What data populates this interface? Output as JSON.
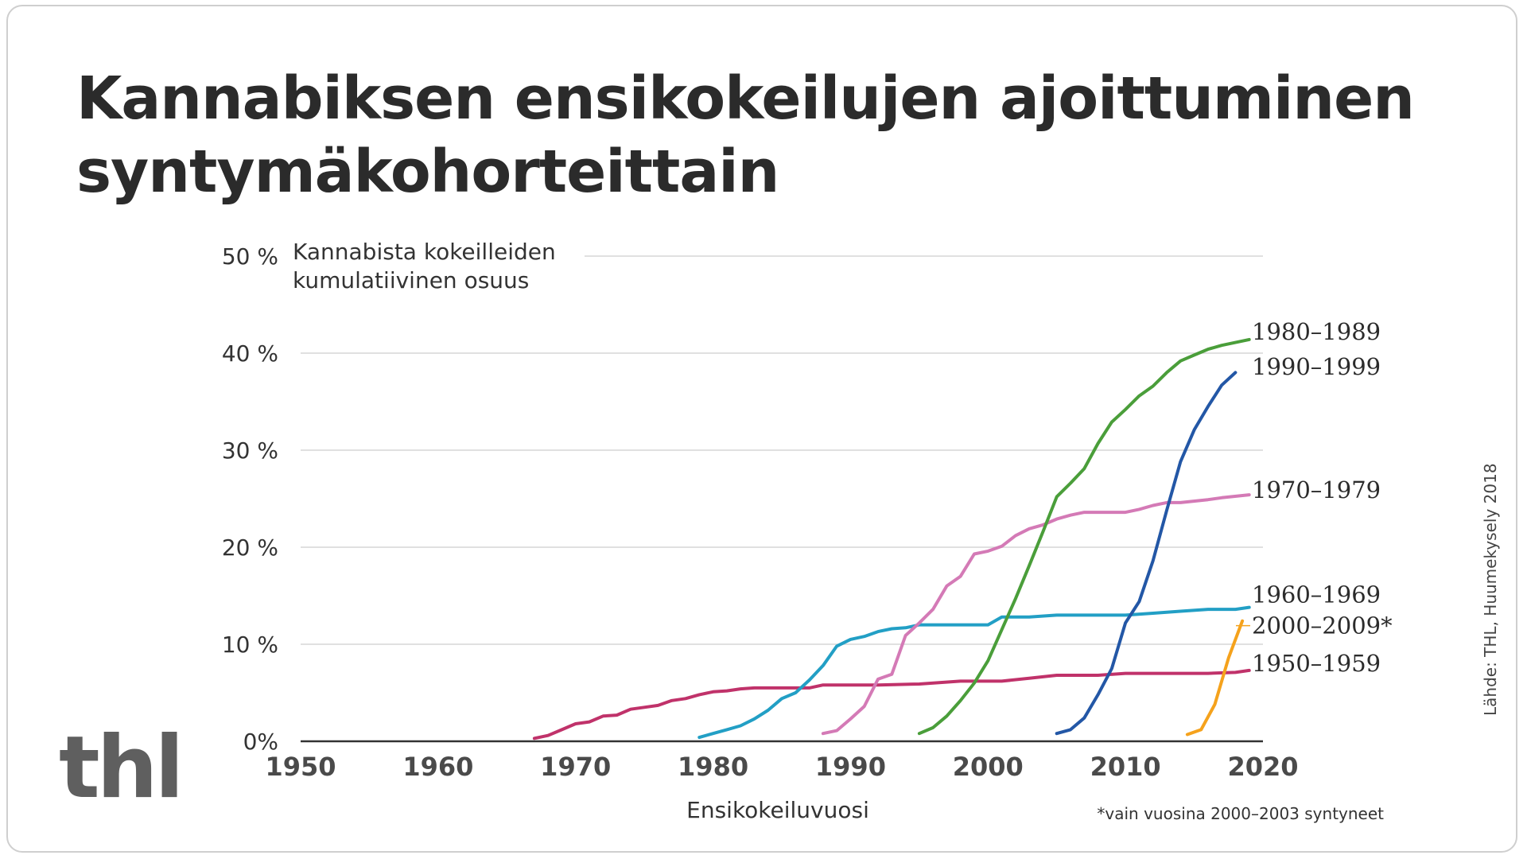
{
  "title_lines": [
    "Kannabiksen ensikokeilujen ajoittuminen",
    "syntymäkohorteittain"
  ],
  "logo_text": "thl",
  "source": "Lähde: THL, Huumekysely 2018",
  "footnote": "*vain vuosina 2000–2003 syntyneet",
  "chart_data": {
    "type": "line",
    "title": "Kannabiksen ensikokeilujen ajoittuminen syntymäkohorteittain",
    "ylabel_lines": [
      "Kannabista kokeilleiden",
      "kumulatiivinen osuus"
    ],
    "xlabel": "Ensikokeiluvuosi",
    "xlim": [
      1950,
      2020
    ],
    "ylim": [
      0,
      50
    ],
    "x_ticks": [
      "1950",
      "1960",
      "1970",
      "1980",
      "1990",
      "2000",
      "2010",
      "2020"
    ],
    "y_ticks": [
      {
        "value": 0,
        "label": "0%"
      },
      {
        "value": 10,
        "label": "10 %"
      },
      {
        "value": 20,
        "label": "20 %"
      },
      {
        "value": 30,
        "label": "30 %"
      },
      {
        "value": 40,
        "label": "40 %"
      },
      {
        "value": 50,
        "label": "50 %"
      }
    ],
    "grid": true,
    "series": [
      {
        "name": "1950–1959",
        "color": "#c0326a",
        "points": [
          [
            1967,
            0.3
          ],
          [
            1968,
            0.6
          ],
          [
            1969,
            1.2
          ],
          [
            1970,
            1.8
          ],
          [
            1971,
            2.0
          ],
          [
            1972,
            2.6
          ],
          [
            1973,
            2.7
          ],
          [
            1974,
            3.3
          ],
          [
            1975,
            3.5
          ],
          [
            1976,
            3.7
          ],
          [
            1977,
            4.2
          ],
          [
            1978,
            4.4
          ],
          [
            1979,
            4.8
          ],
          [
            1980,
            5.1
          ],
          [
            1981,
            5.2
          ],
          [
            1982,
            5.4
          ],
          [
            1983,
            5.5
          ],
          [
            1984,
            5.5
          ],
          [
            1985,
            5.5
          ],
          [
            1986,
            5.5
          ],
          [
            1987,
            5.5
          ],
          [
            1988,
            5.8
          ],
          [
            1989,
            5.8
          ],
          [
            1990,
            5.8
          ],
          [
            1992,
            5.8
          ],
          [
            1995,
            5.9
          ],
          [
            1998,
            6.2
          ],
          [
            2001,
            6.2
          ],
          [
            2003,
            6.5
          ],
          [
            2005,
            6.8
          ],
          [
            2008,
            6.8
          ],
          [
            2010,
            7.0
          ],
          [
            2013,
            7.0
          ],
          [
            2016,
            7.0
          ],
          [
            2018,
            7.1
          ],
          [
            2019,
            7.3
          ]
        ]
      },
      {
        "name": "1960–1969",
        "color": "#229fc5",
        "points": [
          [
            1979,
            0.4
          ],
          [
            1980,
            0.8
          ],
          [
            1981,
            1.2
          ],
          [
            1982,
            1.6
          ],
          [
            1983,
            2.3
          ],
          [
            1984,
            3.2
          ],
          [
            1985,
            4.4
          ],
          [
            1986,
            5.0
          ],
          [
            1987,
            6.3
          ],
          [
            1988,
            7.8
          ],
          [
            1989,
            9.8
          ],
          [
            1990,
            10.5
          ],
          [
            1991,
            10.8
          ],
          [
            1992,
            11.3
          ],
          [
            1993,
            11.6
          ],
          [
            1994,
            11.7
          ],
          [
            1995,
            12.0
          ],
          [
            1997,
            12.0
          ],
          [
            2000,
            12.0
          ],
          [
            2001,
            12.8
          ],
          [
            2003,
            12.8
          ],
          [
            2005,
            13.0
          ],
          [
            2008,
            13.0
          ],
          [
            2010,
            13.0
          ],
          [
            2012,
            13.2
          ],
          [
            2014,
            13.4
          ],
          [
            2016,
            13.6
          ],
          [
            2018,
            13.6
          ],
          [
            2019,
            13.8
          ]
        ]
      },
      {
        "name": "1970–1979",
        "color": "#d47ab6",
        "points": [
          [
            1988,
            0.8
          ],
          [
            1989,
            1.1
          ],
          [
            1990,
            2.3
          ],
          [
            1991,
            3.6
          ],
          [
            1992,
            6.4
          ],
          [
            1993,
            6.9
          ],
          [
            1994,
            10.9
          ],
          [
            1995,
            12.2
          ],
          [
            1996,
            13.6
          ],
          [
            1997,
            16.0
          ],
          [
            1998,
            17.0
          ],
          [
            1999,
            19.3
          ],
          [
            2000,
            19.6
          ],
          [
            2001,
            20.1
          ],
          [
            2002,
            21.2
          ],
          [
            2003,
            21.9
          ],
          [
            2004,
            22.3
          ],
          [
            2005,
            22.9
          ],
          [
            2006,
            23.3
          ],
          [
            2007,
            23.6
          ],
          [
            2010,
            23.6
          ],
          [
            2011,
            23.9
          ],
          [
            2012,
            24.3
          ],
          [
            2013,
            24.6
          ],
          [
            2014,
            24.6
          ],
          [
            2016,
            24.9
          ],
          [
            2017,
            25.1
          ],
          [
            2019,
            25.4
          ]
        ]
      },
      {
        "name": "1980–1989",
        "color": "#4a9e3a",
        "points": [
          [
            1995,
            0.8
          ],
          [
            1996,
            1.4
          ],
          [
            1997,
            2.6
          ],
          [
            1998,
            4.2
          ],
          [
            1999,
            6.0
          ],
          [
            2000,
            8.3
          ],
          [
            2001,
            11.5
          ],
          [
            2002,
            14.7
          ],
          [
            2003,
            18.1
          ],
          [
            2004,
            21.6
          ],
          [
            2005,
            25.2
          ],
          [
            2006,
            26.6
          ],
          [
            2007,
            28.1
          ],
          [
            2008,
            30.7
          ],
          [
            2009,
            32.9
          ],
          [
            2010,
            34.2
          ],
          [
            2011,
            35.6
          ],
          [
            2012,
            36.6
          ],
          [
            2013,
            38.0
          ],
          [
            2014,
            39.2
          ],
          [
            2015,
            39.8
          ],
          [
            2016,
            40.4
          ],
          [
            2017,
            40.8
          ],
          [
            2018,
            41.1
          ],
          [
            2019,
            41.4
          ]
        ]
      },
      {
        "name": "1990–1999",
        "color": "#2357a6",
        "points": [
          [
            2005,
            0.8
          ],
          [
            2006,
            1.2
          ],
          [
            2007,
            2.4
          ],
          [
            2008,
            4.8
          ],
          [
            2009,
            7.5
          ],
          [
            2010,
            12.2
          ],
          [
            2011,
            14.4
          ],
          [
            2012,
            18.6
          ],
          [
            2013,
            23.8
          ],
          [
            2014,
            28.8
          ],
          [
            2015,
            32.1
          ],
          [
            2016,
            34.5
          ],
          [
            2017,
            36.7
          ],
          [
            2018,
            38.0
          ]
        ]
      },
      {
        "name": "2000–2009*",
        "color": "#f5a21c",
        "points": [
          [
            2014.5,
            0.7
          ],
          [
            2015.5,
            1.2
          ],
          [
            2016.5,
            3.8
          ],
          [
            2017.5,
            8.6
          ],
          [
            2018.5,
            12.4
          ]
        ]
      }
    ]
  }
}
